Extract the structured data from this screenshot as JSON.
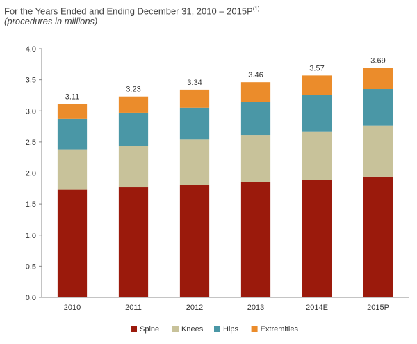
{
  "header": {
    "title": "For the Years Ended and Ending December 31, 2010 – 2015P",
    "title_footnote": "(1)",
    "subtitle": "(procedures in millions)"
  },
  "chart_data": {
    "type": "bar",
    "stacked": true,
    "categories": [
      "2010",
      "2011",
      "2012",
      "2013",
      "2014E",
      "2015P"
    ],
    "series": [
      {
        "name": "Spine",
        "color": "#9b1a0c",
        "values": [
          1.73,
          1.77,
          1.81,
          1.86,
          1.89,
          1.94
        ]
      },
      {
        "name": "Knees",
        "color": "#c8c29a",
        "values": [
          0.65,
          0.67,
          0.73,
          0.75,
          0.78,
          0.82
        ]
      },
      {
        "name": "Hips",
        "color": "#4a97a6",
        "values": [
          0.49,
          0.53,
          0.51,
          0.53,
          0.58,
          0.59
        ]
      },
      {
        "name": "Extremities",
        "color": "#eb8c2b",
        "values": [
          0.24,
          0.26,
          0.29,
          0.32,
          0.32,
          0.34
        ]
      }
    ],
    "totals": [
      "3.11",
      "3.23",
      "3.34",
      "3.46",
      "3.57",
      "3.69"
    ],
    "ylim": [
      0,
      4.0
    ],
    "yticks": [
      "0.0",
      "0.5",
      "1.0",
      "1.5",
      "2.0",
      "2.5",
      "3.0",
      "3.5",
      "4.0"
    ],
    "legend_position": "bottom",
    "grid": false
  }
}
